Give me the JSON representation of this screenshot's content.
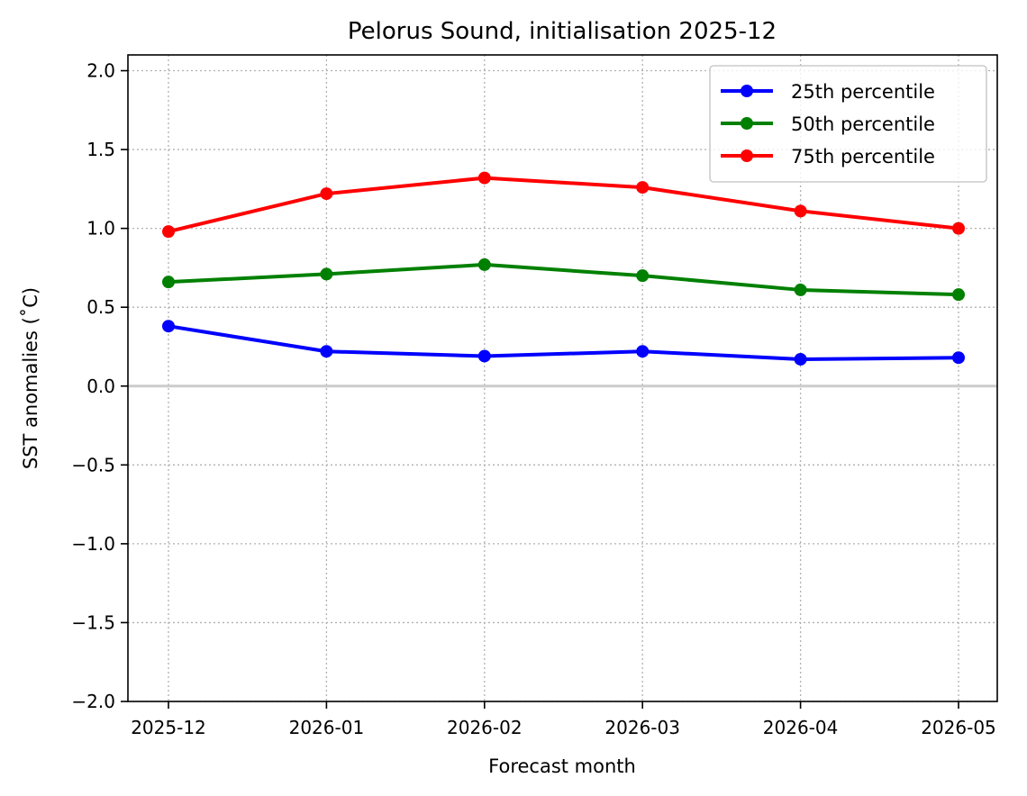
{
  "chart_data": {
    "type": "line",
    "title": "Pelorus Sound, initialisation 2025-12",
    "xlabel": "Forecast month",
    "ylabel": "SST anomalies (˚C)",
    "categories": [
      "2025-12",
      "2026-01",
      "2026-02",
      "2026-03",
      "2026-04",
      "2026-05"
    ],
    "ylim": [
      -2.0,
      2.1
    ],
    "yticks": [
      -2.0,
      -1.5,
      -1.0,
      -0.5,
      0.0,
      0.5,
      1.0,
      1.5,
      2.0
    ],
    "ytick_labels": [
      "−2.0",
      "−1.5",
      "−1.0",
      "−0.5",
      "0.0",
      "0.5",
      "1.0",
      "1.5",
      "2.0"
    ],
    "grid": true,
    "zero_line": true,
    "legend_position": "top-right",
    "series": [
      {
        "name": "25th percentile",
        "color": "#0000ff",
        "values": [
          0.38,
          0.22,
          0.19,
          0.22,
          0.17,
          0.18
        ]
      },
      {
        "name": "50th percentile",
        "color": "#008000",
        "values": [
          0.66,
          0.71,
          0.77,
          0.7,
          0.61,
          0.58
        ]
      },
      {
        "name": "75th percentile",
        "color": "#ff0000",
        "values": [
          0.98,
          1.22,
          1.32,
          1.26,
          1.11,
          1.0
        ]
      }
    ]
  }
}
